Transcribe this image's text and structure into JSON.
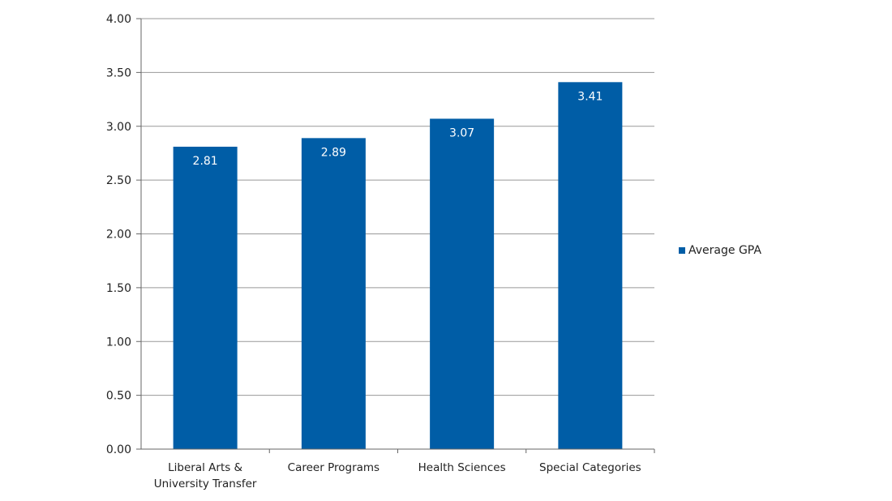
{
  "chart_data": {
    "type": "bar",
    "categories": [
      [
        "Liberal Arts &",
        "University Transfer"
      ],
      [
        "Career Programs"
      ],
      [
        "Health Sciences"
      ],
      [
        "Special Categories"
      ]
    ],
    "series": [
      {
        "name": "Average GPA",
        "values": [
          2.81,
          2.89,
          3.07,
          3.41
        ],
        "labels": [
          "2.81",
          "2.89",
          "3.07",
          "3.41"
        ],
        "color": "#005DA6"
      }
    ],
    "yticks": [
      "0.00",
      "0.50",
      "1.00",
      "1.50",
      "2.00",
      "2.50",
      "3.00",
      "3.50",
      "4.00"
    ],
    "ylim": [
      0,
      4
    ],
    "grid": true,
    "gridline_color": "#999999",
    "legend_position": "right"
  }
}
